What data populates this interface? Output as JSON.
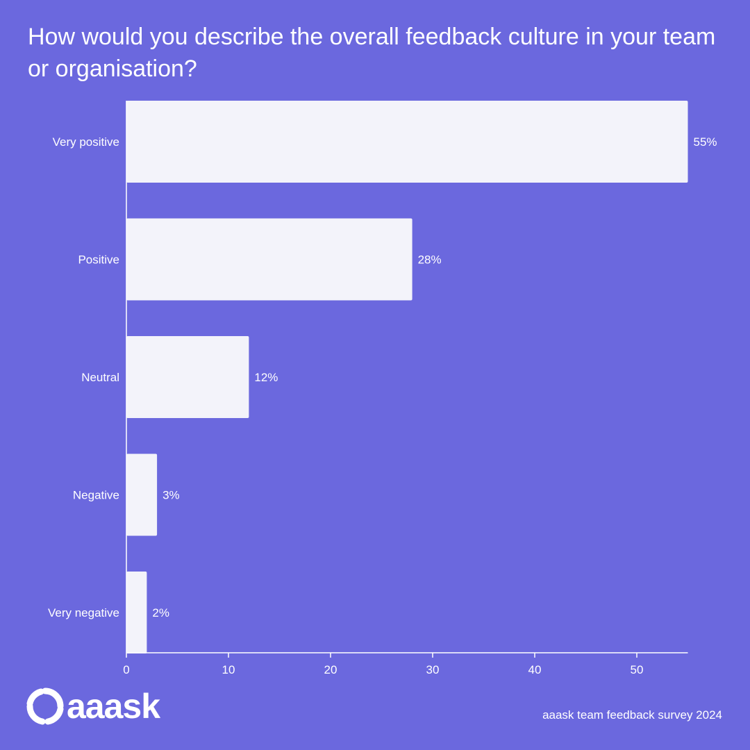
{
  "colors": {
    "background": "#6B68DE",
    "bar": "#F3F3FA",
    "text": "#FFFFFF",
    "axis": "#FFFFFF"
  },
  "chart_data": {
    "type": "bar",
    "orientation": "horizontal",
    "title": "How would you describe the overall feedback culture in your team or organisation?",
    "categories": [
      "Very positive",
      "Positive",
      "Neutral",
      "Negative",
      "Very negative"
    ],
    "values": [
      55,
      28,
      12,
      3,
      2
    ],
    "data_labels": [
      "55%",
      "28%",
      "12%",
      "3%",
      "2%"
    ],
    "xticks": [
      0,
      10,
      20,
      30,
      40,
      50
    ],
    "xlim": [
      0,
      55
    ],
    "grid": false,
    "legend": "none"
  },
  "brand": {
    "logo_icon": "aaask-ring-icon",
    "logo_text": "aaask"
  },
  "source": "aaask team feedback survey 2024"
}
